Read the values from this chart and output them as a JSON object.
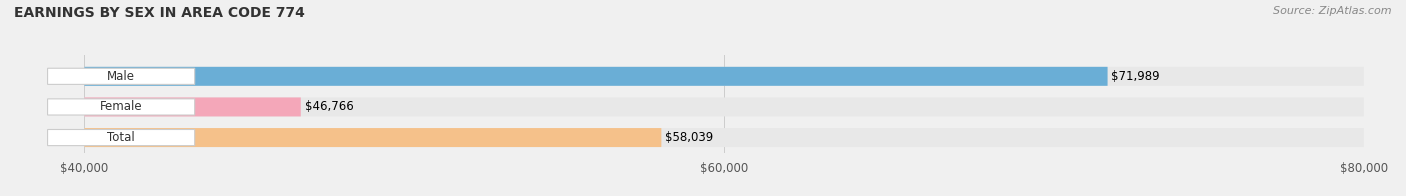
{
  "title": "EARNINGS BY SEX IN AREA CODE 774",
  "source": "Source: ZipAtlas.com",
  "categories": [
    "Male",
    "Female",
    "Total"
  ],
  "values": [
    71989,
    46766,
    58039
  ],
  "bar_colors": [
    "#6aaed6",
    "#f4a7b9",
    "#f5c18a"
  ],
  "value_labels": [
    "$71,989",
    "$46,766",
    "$58,039"
  ],
  "xmin": 40000,
  "xmax": 80000,
  "xticks": [
    40000,
    60000,
    80000
  ],
  "xtick_labels": [
    "$40,000",
    "$60,000",
    "$80,000"
  ],
  "figsize": [
    14.06,
    1.96
  ],
  "dpi": 100,
  "bg_color": "#f0f0f0",
  "bar_bg_color": "#e8e8e8"
}
